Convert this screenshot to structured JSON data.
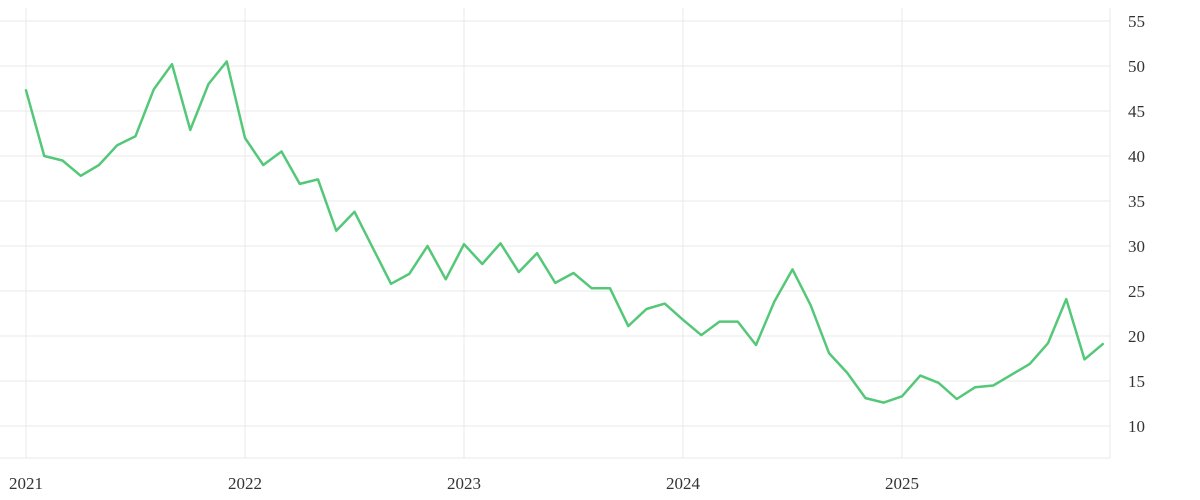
{
  "chart_data": {
    "type": "line",
    "title": "",
    "xlabel": "",
    "ylabel": "",
    "x_tick_labels": [
      "2021",
      "2022",
      "2023",
      "2024",
      "2025"
    ],
    "y_ticks": [
      55,
      50,
      45,
      40,
      35,
      30,
      25,
      20,
      15,
      10
    ],
    "y_axis_side": "right",
    "grid": true,
    "legend": false,
    "x_start": "2021-01",
    "frequency": "monthly",
    "ylim_visible": [
      6.4,
      57.3
    ],
    "series": [
      {
        "name": "value",
        "color": "#54c878",
        "values": [
          47.3,
          40.0,
          39.5,
          37.8,
          39.0,
          41.2,
          42.2,
          47.4,
          50.2,
          42.9,
          48.0,
          50.5,
          42.0,
          39.0,
          40.5,
          36.9,
          37.4,
          31.7,
          33.8,
          29.8,
          25.8,
          26.9,
          30.0,
          26.3,
          30.2,
          28.0,
          30.3,
          27.1,
          29.2,
          25.9,
          27.0,
          25.3,
          25.3,
          21.1,
          23.0,
          23.6,
          21.8,
          20.1,
          21.6,
          21.6,
          19.0,
          23.8,
          27.4,
          23.4,
          18.1,
          15.9,
          13.1,
          12.6,
          13.3,
          15.6,
          14.8,
          13.0,
          14.3,
          14.5,
          15.7,
          16.9,
          19.2,
          24.1,
          17.4,
          19.1
        ]
      }
    ]
  },
  "colors": {
    "background": "#ffffff",
    "grid": "#e9e9e9",
    "tick_text": "#333333",
    "line": "#54c878"
  }
}
